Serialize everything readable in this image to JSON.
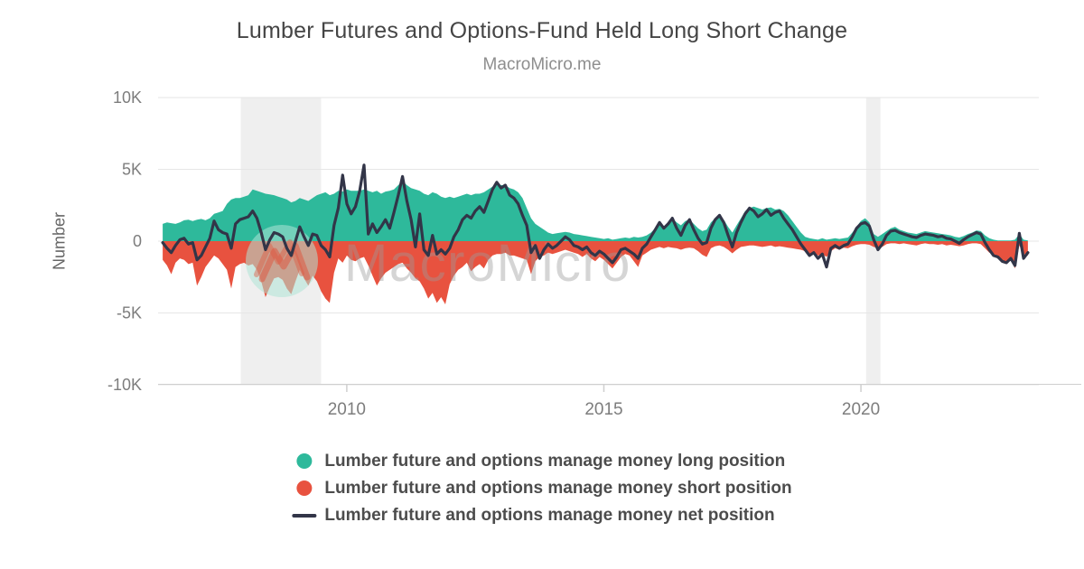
{
  "chart_data": {
    "type": "area",
    "title": "Lumber Futures and Options-Fund Held Long Short Change",
    "subtitle": "MacroMicro.me",
    "ylabel": "Number",
    "xlabel": "",
    "grid": true,
    "legend_position": "bottom",
    "value_unit": "K (thousands of contracts)",
    "xlim": [
      2006.33,
      2023.46
    ],
    "ylim": [
      -10,
      10
    ],
    "x_start": 2006.42,
    "x_step_years": 0.0833,
    "y_ticks": [
      {
        "value": 10,
        "label": "10K"
      },
      {
        "value": 5,
        "label": "5K"
      },
      {
        "value": 0,
        "label": "0"
      },
      {
        "value": -5,
        "label": "-5K"
      },
      {
        "value": -10,
        "label": "-10K"
      }
    ],
    "x_ticks": [
      {
        "value": 2010,
        "label": "2010"
      },
      {
        "value": 2015,
        "label": "2015"
      },
      {
        "value": 2020,
        "label": "2020"
      }
    ],
    "recession_bands": [
      [
        2007.94,
        2009.5
      ],
      [
        2020.1,
        2020.38
      ]
    ],
    "band_color": "#efefef",
    "grid_color": "#e6e6e6",
    "axis_color": "#cfcfcf",
    "tick_label_color": "#7d7d7d",
    "series": [
      {
        "name": "Lumber future and options manage money long position",
        "type": "area",
        "color": "#2eb99b",
        "values": [
          1.2,
          1.3,
          1.25,
          1.2,
          1.3,
          1.45,
          1.5,
          1.4,
          1.5,
          1.55,
          1.45,
          1.6,
          1.9,
          2.0,
          2.1,
          2.6,
          2.9,
          3.0,
          3.0,
          3.1,
          3.2,
          3.6,
          3.5,
          3.4,
          3.3,
          3.25,
          3.2,
          3.1,
          3.0,
          2.9,
          2.7,
          2.8,
          3.0,
          2.9,
          2.8,
          3.0,
          3.2,
          3.3,
          3.4,
          3.2,
          3.3,
          3.5,
          3.45,
          3.6,
          3.5,
          3.5,
          3.5,
          3.6,
          3.5,
          3.4,
          3.5,
          3.3,
          3.45,
          3.5,
          3.6,
          3.9,
          4.2,
          3.9,
          3.7,
          3.6,
          3.5,
          3.3,
          3.2,
          3.4,
          3.3,
          3.1,
          3.0,
          3.1,
          3.0,
          3.1,
          3.2,
          3.3,
          3.2,
          3.3,
          3.3,
          3.4,
          3.6,
          3.8,
          4.0,
          3.9,
          3.9,
          3.7,
          3.6,
          3.4,
          3.0,
          2.3,
          1.6,
          1.2,
          1.0,
          0.8,
          0.6,
          0.5,
          0.55,
          0.6,
          0.65,
          0.6,
          0.5,
          0.45,
          0.4,
          0.35,
          0.3,
          0.25,
          0.2,
          0.15,
          0.2,
          0.1,
          0.15,
          0.2,
          0.25,
          0.2,
          0.3,
          0.25,
          0.3,
          0.4,
          0.6,
          0.9,
          1.2,
          1.0,
          1.3,
          1.6,
          1.3,
          1.1,
          1.4,
          1.5,
          1.2,
          0.9,
          0.7,
          0.8,
          1.3,
          1.6,
          1.7,
          1.5,
          1.0,
          0.6,
          1.1,
          1.6,
          2.1,
          2.3,
          2.4,
          2.3,
          2.2,
          2.3,
          2.35,
          2.2,
          2.25,
          2.1,
          1.8,
          1.4,
          1.0,
          0.6,
          0.3,
          0.2,
          0.15,
          0.1,
          0.2,
          0.1,
          0.15,
          0.2,
          0.15,
          0.2,
          0.25,
          0.6,
          1.0,
          1.4,
          1.6,
          1.3,
          0.5,
          0.3,
          0.5,
          0.7,
          0.9,
          1.0,
          0.8,
          0.7,
          0.6,
          0.55,
          0.5,
          0.6,
          0.7,
          0.65,
          0.6,
          0.55,
          0.5,
          0.45,
          0.4,
          0.3,
          0.25,
          0.35,
          0.5,
          0.6,
          0.75,
          0.7,
          0.4,
          0.2,
          0.1,
          0.05,
          0.05,
          0.05,
          0.05,
          0.1,
          0.5,
          0.1,
          0.05
        ]
      },
      {
        "name": "Lumber future and options manage money short position",
        "type": "area",
        "color": "#e8523f",
        "values": [
          -1.3,
          -1.7,
          -2.3,
          -1.5,
          -1.2,
          -1.3,
          -1.6,
          -1.5,
          -3.1,
          -2.5,
          -1.8,
          -1.4,
          -1.0,
          -1.2,
          -1.6,
          -2.0,
          -3.3,
          -1.8,
          -1.6,
          -1.5,
          -1.7,
          -1.6,
          -2.0,
          -2.8,
          -3.9,
          -3.2,
          -2.6,
          -2.5,
          -2.7,
          -3.3,
          -3.7,
          -2.8,
          -2.0,
          -2.6,
          -3.1,
          -2.4,
          -2.8,
          -3.5,
          -4.0,
          -4.3,
          -2.2,
          -1.2,
          -1.5,
          -1.0,
          -1.3,
          -1.4,
          -1.2,
          -1.1,
          -1.7,
          -2.4,
          -3.1,
          -2.6,
          -2.2,
          -2.0,
          -1.8,
          -1.6,
          -1.5,
          -1.9,
          -2.2,
          -2.6,
          -2.8,
          -3.3,
          -4.0,
          -3.6,
          -4.3,
          -3.9,
          -4.4,
          -3.0,
          -2.4,
          -2.0,
          -1.8,
          -1.5,
          -2.1,
          -1.8,
          -1.6,
          -1.9,
          -1.3,
          -1.0,
          -0.9,
          -0.9,
          -0.8,
          -1.0,
          -1.0,
          -1.1,
          -1.2,
          -1.3,
          -2.3,
          -1.4,
          -1.1,
          -1.0,
          -0.8,
          -0.9,
          -0.8,
          -0.7,
          -0.6,
          -0.7,
          -0.8,
          -0.9,
          -1.1,
          -0.9,
          -1.2,
          -1.4,
          -1.1,
          -1.3,
          -1.6,
          -1.9,
          -1.5,
          -1.1,
          -0.9,
          -1.0,
          -1.4,
          -1.8,
          -1.0,
          -0.8,
          -0.6,
          -0.5,
          -0.4,
          -0.5,
          -0.4,
          -0.45,
          -0.5,
          -0.6,
          -0.5,
          -0.45,
          -0.5,
          -0.7,
          -0.95,
          -1.1,
          -0.5,
          -0.35,
          -0.3,
          -0.4,
          -0.6,
          -0.85,
          -0.6,
          -0.4,
          -0.35,
          -0.3,
          -0.3,
          -0.35,
          -0.4,
          -0.35,
          -0.3,
          -0.4,
          -0.35,
          -0.4,
          -0.45,
          -0.5,
          -0.55,
          -0.6,
          -0.7,
          -0.9,
          -0.8,
          -1.0,
          -0.9,
          -1.1,
          -0.7,
          -0.5,
          -0.6,
          -0.45,
          -0.5,
          -0.35,
          -0.25,
          -0.2,
          -0.2,
          -0.25,
          -0.4,
          -0.5,
          -0.4,
          -0.2,
          -0.15,
          -0.15,
          -0.2,
          -0.15,
          -0.2,
          -0.25,
          -0.3,
          -0.2,
          -0.15,
          -0.2,
          -0.2,
          -0.25,
          -0.2,
          -0.3,
          -0.25,
          -0.3,
          -0.35,
          -0.3,
          -0.2,
          -0.15,
          -0.15,
          -0.2,
          -0.5,
          -0.8,
          -0.9,
          -1.2,
          -1.45,
          -1.6,
          -1.3,
          -1.9,
          -0.3,
          -0.9,
          -1.0
        ]
      },
      {
        "name": "Lumber future and options manage money net position",
        "type": "line",
        "color": "#323548",
        "values": [
          -0.1,
          -0.5,
          -0.8,
          -0.3,
          0.1,
          0.2,
          -0.2,
          -0.1,
          -1.3,
          -1.0,
          -0.4,
          0.2,
          1.4,
          0.8,
          0.6,
          0.5,
          -0.5,
          1.2,
          1.5,
          1.6,
          1.7,
          2.1,
          1.6,
          0.6,
          -0.6,
          0.1,
          0.6,
          0.5,
          0.3,
          -0.5,
          -1.0,
          0.0,
          1.0,
          0.3,
          -0.3,
          0.5,
          0.4,
          -0.3,
          -0.6,
          -1.1,
          1.1,
          2.3,
          4.6,
          2.6,
          1.9,
          2.4,
          3.5,
          5.3,
          0.5,
          1.2,
          0.6,
          1.0,
          1.5,
          0.9,
          2.0,
          3.2,
          4.5,
          2.8,
          1.5,
          -0.4,
          1.9,
          -0.6,
          -1.0,
          0.4,
          -0.9,
          -0.6,
          -0.9,
          -0.5,
          0.3,
          0.8,
          1.5,
          1.8,
          1.6,
          2.1,
          2.4,
          2.0,
          2.8,
          3.6,
          4.1,
          3.7,
          3.9,
          3.2,
          3.0,
          2.6,
          1.8,
          1.1,
          -0.8,
          -0.3,
          -1.2,
          -0.6,
          -0.2,
          -0.5,
          -0.3,
          0.0,
          0.3,
          0.1,
          -0.3,
          -0.4,
          -0.6,
          -0.4,
          -0.8,
          -1.0,
          -0.7,
          -0.9,
          -1.2,
          -1.5,
          -1.1,
          -0.6,
          -0.5,
          -0.7,
          -0.9,
          -1.2,
          -0.5,
          -0.2,
          0.3,
          0.8,
          1.3,
          0.9,
          1.2,
          1.6,
          0.9,
          0.4,
          1.1,
          1.5,
          0.8,
          0.2,
          -0.2,
          -0.1,
          0.9,
          1.5,
          1.8,
          1.3,
          0.4,
          -0.4,
          0.6,
          1.3,
          1.9,
          2.3,
          2.1,
          1.7,
          1.9,
          2.2,
          1.8,
          2.0,
          2.1,
          1.6,
          1.2,
          0.8,
          0.3,
          -0.2,
          -0.6,
          -1.0,
          -0.8,
          -1.2,
          -0.9,
          -1.8,
          -0.5,
          -0.3,
          -0.5,
          -0.3,
          -0.2,
          0.3,
          0.9,
          1.2,
          1.3,
          1.05,
          0.1,
          -0.6,
          -0.2,
          0.4,
          0.7,
          0.75,
          0.6,
          0.5,
          0.4,
          0.3,
          0.25,
          0.4,
          0.5,
          0.45,
          0.4,
          0.3,
          0.35,
          0.2,
          0.15,
          0.0,
          -0.15,
          0.1,
          0.3,
          0.45,
          0.6,
          0.5,
          -0.1,
          -0.6,
          -1.0,
          -1.1,
          -1.4,
          -1.5,
          -1.2,
          -1.7,
          0.55,
          -1.2,
          -0.8
        ]
      }
    ]
  },
  "watermark": {
    "text": "MacroMicro",
    "logo": "macromicro-mountain-logo",
    "circle_color": "#aee4d6",
    "logo_color": "#dd5a43",
    "text_color": "#9b9b9b"
  }
}
